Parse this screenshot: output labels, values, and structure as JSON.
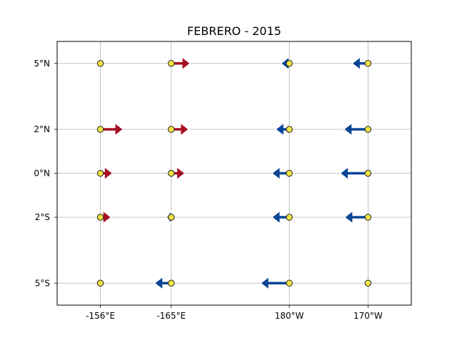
{
  "chart_data": {
    "type": "vector-map",
    "title": "FEBRERO - 2015",
    "grid": true,
    "colors": {
      "eastward": "#a50f24",
      "westward": "#0b4595",
      "station_fill": "#f0e442",
      "grid": "#b0b0b0"
    },
    "x_ticks": [
      {
        "label": "-156°E",
        "lon": 156
      },
      {
        "label": "-165°E",
        "lon": 165
      },
      {
        "label": "180°W",
        "lon": 180
      },
      {
        "label": "170°W",
        "lon": 190
      }
    ],
    "y_ticks": [
      {
        "label": "5°N",
        "lat": 5
      },
      {
        "label": "2°N",
        "lat": 2
      },
      {
        "label": "0°N",
        "lat": 0
      },
      {
        "label": "2°S",
        "lat": -2
      },
      {
        "label": "5°S",
        "lat": -5
      }
    ],
    "xlim": [
      150.5,
      195.5
    ],
    "ylim": [
      -6,
      6
    ],
    "stations": [
      {
        "lon": 156,
        "lat": 5,
        "u": 0
      },
      {
        "lon": 156,
        "lat": 2,
        "u": 3.0
      },
      {
        "lon": 156,
        "lat": 0,
        "u": 1.6
      },
      {
        "lon": 156,
        "lat": -2,
        "u": 1.4
      },
      {
        "lon": 156,
        "lat": -5,
        "u": 0
      },
      {
        "lon": 165,
        "lat": 5,
        "u": 2.5
      },
      {
        "lon": 165,
        "lat": 2,
        "u": 2.3
      },
      {
        "lon": 165,
        "lat": 0,
        "u": 1.8
      },
      {
        "lon": 165,
        "lat": -2,
        "u": -0.6
      },
      {
        "lon": 165,
        "lat": -5,
        "u": -2.2
      },
      {
        "lon": 180,
        "lat": 5,
        "u": -1.1
      },
      {
        "lon": 180,
        "lat": 2,
        "u": -1.8
      },
      {
        "lon": 180,
        "lat": 0,
        "u": -2.3
      },
      {
        "lon": 180,
        "lat": -2,
        "u": -2.3
      },
      {
        "lon": 180,
        "lat": -5,
        "u": -3.8
      },
      {
        "lon": 190,
        "lat": 5,
        "u": -2.1
      },
      {
        "lon": 190,
        "lat": 2,
        "u": -3.2
      },
      {
        "lon": 190,
        "lat": 0,
        "u": -3.7
      },
      {
        "lon": 190,
        "lat": -2,
        "u": -3.1
      },
      {
        "lon": 190,
        "lat": -5,
        "u": 0
      }
    ]
  }
}
